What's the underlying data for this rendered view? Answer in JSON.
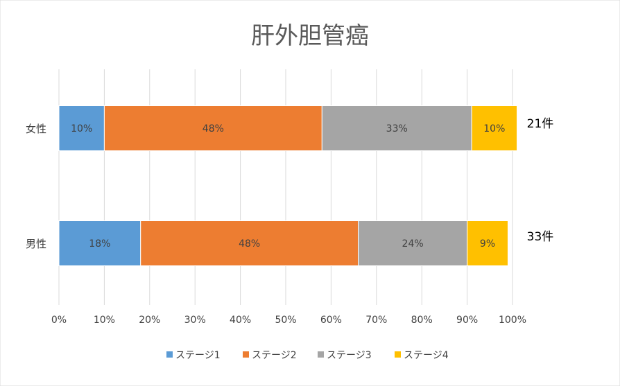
{
  "chart_data": {
    "type": "bar",
    "orientation": "horizontal",
    "stacked": true,
    "percent": true,
    "title": "肝外胆管癌",
    "categories": [
      "女性",
      "男性"
    ],
    "series": [
      {
        "name": "ステージ1",
        "color": "#5B9BD5",
        "values": [
          10,
          18
        ],
        "labels": [
          "10%",
          "18%"
        ]
      },
      {
        "name": "ステージ2",
        "color": "#ED7D31",
        "values": [
          48,
          48
        ],
        "labels": [
          "48%",
          "48%"
        ]
      },
      {
        "name": "ステージ3",
        "color": "#A5A5A5",
        "values": [
          33,
          24
        ],
        "labels": [
          "33%",
          "24%"
        ]
      },
      {
        "name": "ステージ4",
        "color": "#FFC000",
        "values": [
          10,
          9
        ],
        "labels": [
          "10%",
          "9%"
        ]
      }
    ],
    "annotations": [
      "21件",
      "33件"
    ],
    "x_ticks": [
      "0%",
      "10%",
      "20%",
      "30%",
      "40%",
      "50%",
      "60%",
      "70%",
      "80%",
      "90%",
      "100%"
    ],
    "xlim": [
      0,
      100
    ],
    "grid": true,
    "legend_position": "bottom"
  }
}
